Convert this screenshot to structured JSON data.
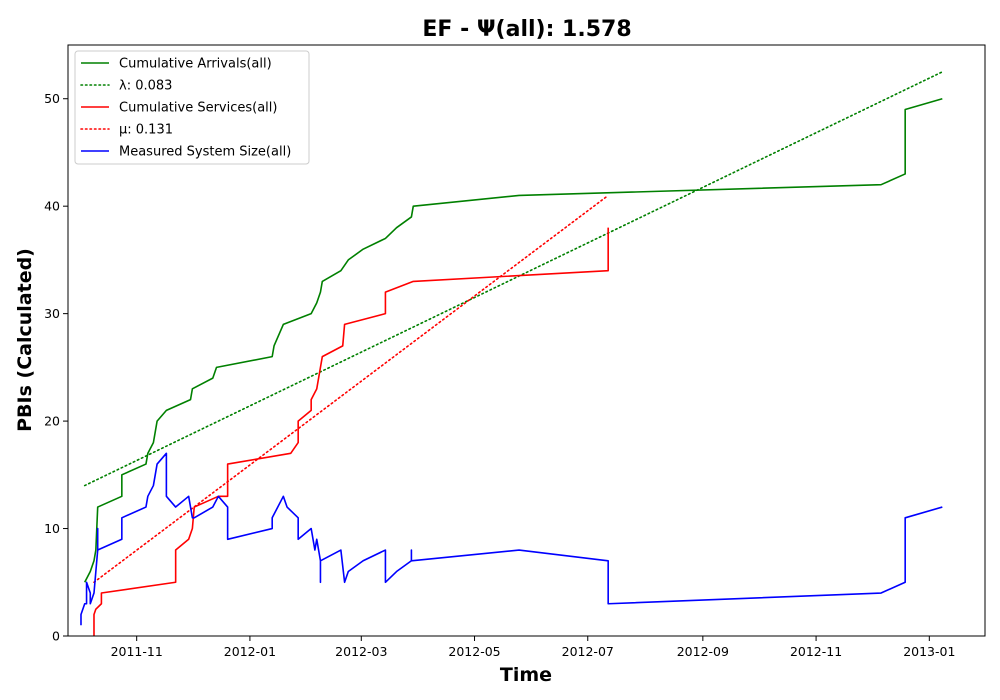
{
  "chart_data": {
    "type": "line",
    "title": "EF -  Ψ(all): 1.578",
    "xlabel": "Time",
    "ylabel": "PBIs (Calculated)",
    "xlim": [
      "2011-09-25",
      "2013-01-31"
    ],
    "ylim": [
      0,
      55
    ],
    "x_ticks": [
      "2011-11-01",
      "2012-01-01",
      "2012-03-01",
      "2012-05-01",
      "2012-07-01",
      "2012-09-01",
      "2012-11-01",
      "2013-01-01"
    ],
    "x_tick_labels": [
      "2011-11",
      "2012-01",
      "2012-03",
      "2012-05",
      "2012-07",
      "2012-09",
      "2012-11",
      "2013-01"
    ],
    "y_ticks": [
      0,
      10,
      20,
      30,
      40,
      50
    ],
    "y_tick_labels": [
      "0",
      "10",
      "20",
      "30",
      "40",
      "50"
    ],
    "grid": false,
    "legend_position": "top-left",
    "series": [
      {
        "name": "Cumulative Arrivals(all)",
        "color": "#008000",
        "style": "solid",
        "points": [
          [
            "2011-10-04",
            5
          ],
          [
            "2011-10-07",
            6
          ],
          [
            "2011-10-09",
            7
          ],
          [
            "2011-10-10",
            8
          ],
          [
            "2011-10-11",
            12
          ],
          [
            "2011-10-24",
            13
          ],
          [
            "2011-10-24",
            15
          ],
          [
            "2011-11-06",
            16
          ],
          [
            "2011-11-07",
            17
          ],
          [
            "2011-11-10",
            18
          ],
          [
            "2011-11-12",
            20
          ],
          [
            "2011-11-17",
            21
          ],
          [
            "2011-11-30",
            22
          ],
          [
            "2011-12-01",
            23
          ],
          [
            "2011-12-12",
            24
          ],
          [
            "2011-12-14",
            25
          ],
          [
            "2012-01-13",
            26
          ],
          [
            "2012-01-14",
            27
          ],
          [
            "2012-01-19",
            29
          ],
          [
            "2012-02-03",
            30
          ],
          [
            "2012-02-06",
            31
          ],
          [
            "2012-02-08",
            32
          ],
          [
            "2012-02-09",
            33
          ],
          [
            "2012-02-19",
            34
          ],
          [
            "2012-02-23",
            35
          ],
          [
            "2012-03-02",
            36
          ],
          [
            "2012-03-14",
            37
          ],
          [
            "2012-03-20",
            38
          ],
          [
            "2012-03-28",
            39
          ],
          [
            "2012-03-29",
            40
          ],
          [
            "2012-05-25",
            41
          ],
          [
            "2012-12-06",
            42
          ],
          [
            "2012-12-19",
            43
          ],
          [
            "2012-12-19",
            49
          ],
          [
            "2013-01-08",
            50
          ]
        ]
      },
      {
        "name": "λ: 0.083",
        "color": "#008000",
        "style": "dotted",
        "points": [
          [
            "2011-10-04",
            14
          ],
          [
            "2013-01-08",
            52.5
          ]
        ]
      },
      {
        "name": "Cumulative Services(all)",
        "color": "#ff0000",
        "style": "solid",
        "points": [
          [
            "2011-10-09",
            0
          ],
          [
            "2011-10-09",
            2
          ],
          [
            "2011-10-10",
            2.5
          ],
          [
            "2011-10-13",
            3
          ],
          [
            "2011-10-13",
            4
          ],
          [
            "2011-11-22",
            5
          ],
          [
            "2011-11-22",
            8
          ],
          [
            "2011-11-29",
            9
          ],
          [
            "2011-12-01",
            10
          ],
          [
            "2011-12-02",
            12
          ],
          [
            "2011-12-15",
            13
          ],
          [
            "2011-12-20",
            13
          ],
          [
            "2011-12-20",
            16
          ],
          [
            "2012-01-23",
            17
          ],
          [
            "2012-01-27",
            18
          ],
          [
            "2012-01-27",
            20
          ],
          [
            "2012-02-03",
            21
          ],
          [
            "2012-02-03",
            22
          ],
          [
            "2012-02-06",
            23
          ],
          [
            "2012-02-09",
            26
          ],
          [
            "2012-02-20",
            27
          ],
          [
            "2012-02-21",
            29
          ],
          [
            "2012-03-14",
            30
          ],
          [
            "2012-03-14",
            32
          ],
          [
            "2012-03-29",
            33
          ],
          [
            "2012-07-12",
            34
          ],
          [
            "2012-07-12",
            38
          ]
        ]
      },
      {
        "name": "μ: 0.131",
        "color": "#ff0000",
        "style": "dotted",
        "points": [
          [
            "2011-10-09",
            5
          ],
          [
            "2012-07-12",
            41
          ]
        ]
      },
      {
        "name": "Measured System Size(all)",
        "color": "#0000ff",
        "style": "solid",
        "points": [
          [
            "2011-10-02",
            1
          ],
          [
            "2011-10-02",
            2
          ],
          [
            "2011-10-04",
            3
          ],
          [
            "2011-10-05",
            3
          ],
          [
            "2011-10-05",
            5
          ],
          [
            "2011-10-07",
            4
          ],
          [
            "2011-10-07",
            3
          ],
          [
            "2011-10-09",
            4
          ],
          [
            "2011-10-10",
            6
          ],
          [
            "2011-10-11",
            8
          ],
          [
            "2011-10-11",
            10
          ],
          [
            "2011-10-11",
            8
          ],
          [
            "2011-10-24",
            9
          ],
          [
            "2011-10-24",
            11
          ],
          [
            "2011-11-06",
            12
          ],
          [
            "2011-11-07",
            13
          ],
          [
            "2011-11-10",
            14
          ],
          [
            "2011-11-12",
            16
          ],
          [
            "2011-11-17",
            17
          ],
          [
            "2011-11-17",
            13
          ],
          [
            "2011-11-22",
            12
          ],
          [
            "2011-11-29",
            13
          ],
          [
            "2011-12-01",
            11
          ],
          [
            "2011-12-02",
            11
          ],
          [
            "2011-12-12",
            12
          ],
          [
            "2011-12-15",
            13
          ],
          [
            "2011-12-20",
            12
          ],
          [
            "2011-12-20",
            9
          ],
          [
            "2012-01-13",
            10
          ],
          [
            "2012-01-13",
            11
          ],
          [
            "2012-01-19",
            13
          ],
          [
            "2012-01-21",
            12
          ],
          [
            "2012-01-27",
            11
          ],
          [
            "2012-01-27",
            9
          ],
          [
            "2012-02-03",
            10
          ],
          [
            "2012-02-05",
            8
          ],
          [
            "2012-02-06",
            9
          ],
          [
            "2012-02-08",
            7
          ],
          [
            "2012-02-08",
            5
          ],
          [
            "2012-02-08",
            7
          ],
          [
            "2012-02-19",
            8
          ],
          [
            "2012-02-21",
            5
          ],
          [
            "2012-02-23",
            6
          ],
          [
            "2012-03-02",
            7
          ],
          [
            "2012-03-14",
            8
          ],
          [
            "2012-03-14",
            5
          ],
          [
            "2012-03-20",
            6
          ],
          [
            "2012-03-28",
            7
          ],
          [
            "2012-03-28",
            8
          ],
          [
            "2012-03-28",
            7
          ],
          [
            "2012-05-25",
            8
          ],
          [
            "2012-07-12",
            7
          ],
          [
            "2012-07-12",
            3
          ],
          [
            "2012-12-06",
            4
          ],
          [
            "2012-12-19",
            5
          ],
          [
            "2012-12-19",
            11
          ],
          [
            "2013-01-08",
            12
          ]
        ]
      }
    ]
  }
}
